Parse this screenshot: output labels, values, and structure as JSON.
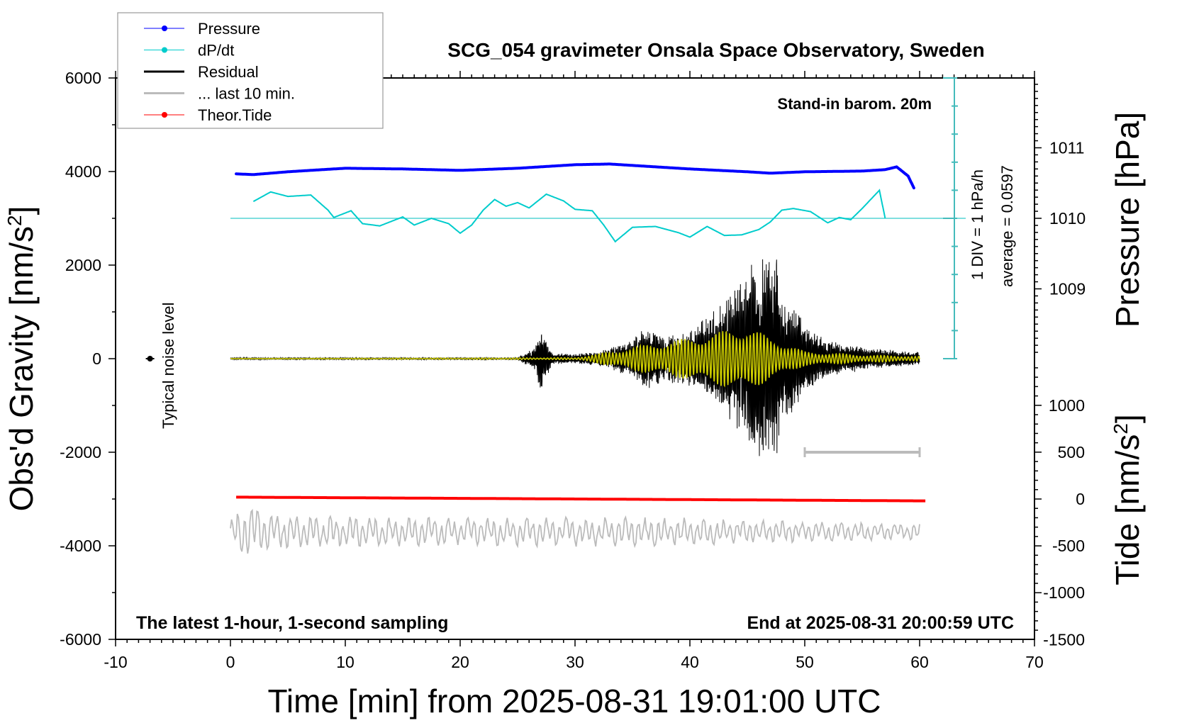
{
  "chart_data": {
    "type": "line",
    "title": "SCG_054 gravimeter Onsala Space Observatory, Sweden",
    "annotations": {
      "barometer": "Stand-in barom. 20m",
      "sampling": "The latest 1-hour, 1-second sampling",
      "end_time": "End at 2025-08-31 20:00:59 UTC",
      "noise_label": "Typical noise level",
      "div_label": "1 DIV = 1 hPa/h",
      "average_label": "average = 0.0597"
    },
    "xlabel": "Time [min] from 2025-08-31 19:01:00 UTC",
    "ylabel_left": "Obs'd Gravity [nm/s",
    "ylabel_right_pressure": "Pressure [hPa]",
    "ylabel_right_tide": "Tide [nm/s",
    "sup2": "2",
    "xlim": [
      -10,
      70
    ],
    "xticks": [
      "-10",
      "0",
      "10",
      "20",
      "30",
      "40",
      "50",
      "60",
      "70"
    ],
    "ylim_left": [
      -6000,
      6000
    ],
    "yticks_left": [
      "-6000",
      "-4000",
      "-2000",
      "0",
      "2000",
      "4000",
      "6000"
    ],
    "pressure_ticks": [
      "1009",
      "1010",
      "1011"
    ],
    "tide_ticks": [
      "-1500",
      "-1000",
      "-500",
      "0",
      "500",
      "1000"
    ],
    "grid": false,
    "legend": {
      "placement": "top-left",
      "entries": [
        {
          "label": "Pressure",
          "color": "#0000ff",
          "marker": "dot"
        },
        {
          "label": "dP/dt",
          "color": "#00cccc",
          "marker": "dot"
        },
        {
          "label": "Residual",
          "color": "#000000",
          "marker": "line"
        },
        {
          "label": "... last 10 min.",
          "color": "#bbbbbb",
          "marker": "line"
        },
        {
          "label": "Theor.Tide",
          "color": "#ff0000",
          "marker": "dot"
        }
      ]
    },
    "series": [
      {
        "name": "Pressure",
        "unit": "hPa",
        "color": "#0000ff",
        "x": [
          0.5,
          2,
          5,
          10,
          15,
          20,
          25,
          30,
          33,
          35,
          40,
          45,
          47,
          50,
          55,
          57,
          58,
          59,
          59.5
        ],
        "y": [
          1010.63,
          1010.62,
          1010.66,
          1010.71,
          1010.7,
          1010.68,
          1010.71,
          1010.76,
          1010.77,
          1010.75,
          1010.7,
          1010.66,
          1010.64,
          1010.66,
          1010.67,
          1010.69,
          1010.73,
          1010.6,
          1010.43
        ]
      },
      {
        "name": "dP/dt",
        "unit": "hPa/h",
        "color": "#00cccc",
        "zero_level_hPa": 1010,
        "x": [
          2,
          3.5,
          5,
          7,
          8.5,
          9,
          10.5,
          11.5,
          13,
          15,
          16,
          17.5,
          19,
          20,
          21,
          22,
          23,
          24,
          25,
          26,
          27.5,
          29,
          30,
          31.5,
          32.5,
          33.5,
          35,
          37,
          39,
          40,
          41.5,
          43,
          44.5,
          46,
          47,
          48,
          49,
          50.5,
          52,
          53,
          54,
          55,
          56.5,
          57
        ],
        "y": [
          0.6,
          0.94,
          0.78,
          0.83,
          0.29,
          0.03,
          0.27,
          -0.19,
          -0.27,
          0.05,
          -0.24,
          0.0,
          -0.19,
          -0.53,
          -0.24,
          0.29,
          0.67,
          0.43,
          0.56,
          0.37,
          0.86,
          0.62,
          0.32,
          0.27,
          -0.24,
          -0.83,
          -0.32,
          -0.29,
          -0.51,
          -0.67,
          -0.29,
          -0.61,
          -0.59,
          -0.4,
          -0.13,
          0.29,
          0.35,
          0.24,
          -0.16,
          0.03,
          -0.05,
          0.35,
          1.0,
          0.0
        ]
      },
      {
        "name": "Residual",
        "unit": "nm/s2",
        "color": "#000000",
        "representation": "amplitude envelope of oscillating signal",
        "x": [
          0,
          25,
          26.5,
          27,
          28,
          30,
          32,
          35,
          36,
          38,
          40,
          41,
          42,
          43,
          44,
          45,
          46,
          47.5,
          48,
          50,
          52,
          55,
          60
        ],
        "amplitude": [
          20,
          20,
          250,
          700,
          120,
          100,
          150,
          400,
          700,
          500,
          600,
          800,
          1000,
          1300,
          1500,
          2000,
          2200,
          2300,
          1500,
          800,
          400,
          250,
          150
        ]
      },
      {
        "color": "#cccc00",
        "unit": "nm/s2",
        "representation": "amplitude envelope (filtered)",
        "x": [
          0,
          30,
          32,
          35,
          40,
          43,
          45,
          47,
          50,
          55,
          60
        ],
        "amplitude": [
          5,
          20,
          100,
          250,
          450,
          600,
          700,
          450,
          150,
          80,
          50
        ]
      },
      {
        "name": "... last 10 min.",
        "unit": "nm/s2",
        "color": "#bbbbbb",
        "offset": -3700,
        "representation": "amplitude envelope",
        "x": [
          0,
          1.5,
          3,
          10,
          20,
          30,
          40,
          50,
          60
        ],
        "amplitude": [
          300,
          650,
          400,
          350,
          300,
          320,
          300,
          220,
          180
        ]
      },
      {
        "name": "Theor.Tide",
        "unit": "nm/s2",
        "color": "#ff0000",
        "x": [
          0.5,
          60.5
        ],
        "y": [
          20,
          -20
        ]
      }
    ],
    "scale_bar": {
      "x": [
        50,
        60
      ],
      "y": -2000,
      "color": "#bbbbbb"
    },
    "noise_marker": {
      "x": -7,
      "y": 0
    }
  }
}
